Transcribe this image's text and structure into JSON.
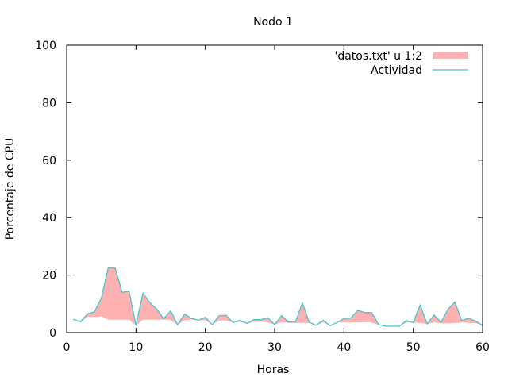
{
  "chart_data": {
    "type": "area",
    "title": "Nodo 1",
    "xlabel": "Horas",
    "ylabel": "Porcentaje de CPU",
    "xlim": [
      0,
      60
    ],
    "ylim": [
      0,
      100
    ],
    "x_ticks": [
      0,
      10,
      20,
      30,
      40,
      50,
      60
    ],
    "y_ticks": [
      0,
      20,
      40,
      60,
      80,
      100
    ],
    "grid": false,
    "legend_position": "top-right",
    "x": [
      1,
      2,
      3,
      4,
      5,
      6,
      7,
      8,
      9,
      10,
      11,
      12,
      13,
      14,
      15,
      16,
      17,
      18,
      19,
      20,
      21,
      22,
      23,
      24,
      25,
      26,
      27,
      28,
      29,
      30,
      31,
      32,
      33,
      34,
      35,
      36,
      37,
      38,
      39,
      40,
      41,
      42,
      43,
      44,
      45,
      46,
      47,
      48,
      49,
      50,
      51,
      52,
      53,
      54,
      55,
      56,
      57,
      58,
      59,
      60
    ],
    "series": [
      {
        "name": "'datos.txt' u 1:2",
        "style": "filledcurves",
        "color": "#ffb0b0",
        "baseline": [
          4.6,
          3.6,
          5.5,
          5.5,
          5.6,
          4.5,
          4.5,
          4.5,
          4.5,
          2.5,
          4.5,
          4.5,
          4.5,
          4.5,
          4.5,
          2.7,
          4.3,
          4.5,
          4.3,
          4.3,
          2.7,
          4.2,
          4.2,
          3.5,
          3.7,
          3.2,
          3.8,
          3.8,
          3.6,
          2.8,
          3.6,
          3.4,
          3.4,
          3.4,
          3.4,
          2.5,
          3.6,
          2.4,
          3.5,
          3.5,
          3.5,
          3.5,
          3.6,
          3.6,
          2.6,
          2.2,
          2.2,
          2.2,
          3.5,
          3.5,
          3.4,
          3.0,
          3.5,
          3.2,
          3.2,
          3.4,
          3.5,
          3.4,
          3.3,
          2.5
        ],
        "values": [
          4.6,
          3.8,
          6.5,
          7.2,
          12.0,
          22.6,
          22.4,
          14.0,
          14.4,
          2.5,
          13.7,
          10.4,
          8.2,
          4.8,
          7.6,
          2.7,
          6.4,
          5.0,
          4.3,
          5.3,
          2.8,
          5.9,
          6.0,
          3.5,
          4.3,
          3.2,
          4.5,
          4.5,
          5.2,
          2.8,
          5.9,
          3.7,
          3.7,
          10.3,
          3.6,
          2.5,
          4.3,
          2.4,
          3.5,
          4.9,
          5.1,
          7.8,
          7.0,
          7.0,
          2.8,
          2.2,
          2.2,
          2.2,
          4.2,
          3.5,
          9.6,
          3.0,
          6.1,
          3.6,
          8.1,
          10.6,
          4.2,
          5.0,
          4.0,
          2.5
        ]
      },
      {
        "name": "Actividad",
        "style": "line",
        "color": "#40c8d0",
        "values": [
          4.6,
          3.8,
          6.5,
          7.2,
          12.0,
          22.6,
          22.4,
          14.0,
          14.4,
          2.5,
          13.7,
          10.4,
          8.2,
          4.8,
          7.6,
          2.7,
          6.4,
          5.0,
          4.3,
          5.3,
          2.8,
          5.9,
          6.0,
          3.5,
          4.3,
          3.2,
          4.5,
          4.5,
          5.2,
          2.8,
          5.9,
          3.7,
          3.7,
          10.3,
          3.6,
          2.5,
          4.3,
          2.4,
          3.5,
          4.9,
          5.1,
          7.8,
          7.0,
          7.0,
          2.8,
          2.2,
          2.2,
          2.2,
          4.2,
          3.5,
          9.6,
          3.0,
          6.1,
          3.6,
          8.1,
          10.6,
          4.2,
          5.0,
          4.0,
          2.5
        ]
      }
    ]
  }
}
